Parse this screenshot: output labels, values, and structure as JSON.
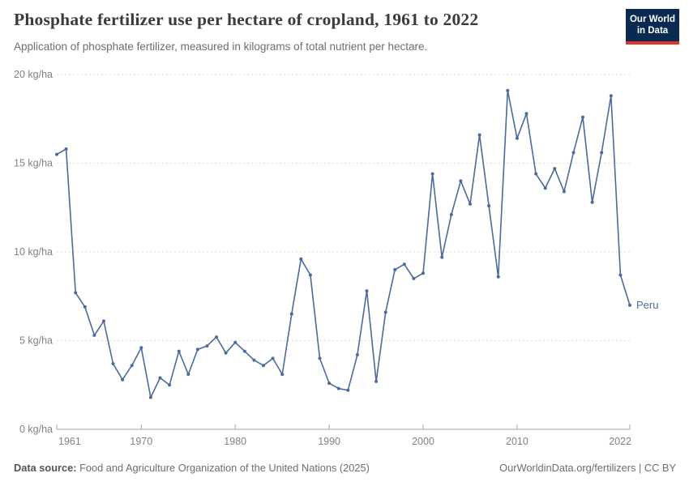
{
  "header": {
    "title": "Phosphate fertilizer use per hectare of cropland, 1961 to 2022",
    "subtitle": "Application of phosphate fertilizer, measured in kilograms of total nutrient per hectare.",
    "logo_line1": "Our World",
    "logo_line2": "in Data"
  },
  "footer": {
    "source_label": "Data source:",
    "source_text": " Food and Agriculture Organization of the United Nations (2025)",
    "rights_text": "OurWorldinData.org/fertilizers | CC BY"
  },
  "colors": {
    "series": "#4C6A9C",
    "grid": "#dcdcdc",
    "axis": "#a3a3a3",
    "logo_bg": "#0a2a52",
    "logo_red": "#e0362c"
  },
  "chart_data": {
    "type": "line",
    "title": "Phosphate fertilizer use per hectare of cropland, 1961 to 2022",
    "xlabel": "",
    "ylabel": "kg/ha",
    "xlim": [
      1961,
      2022
    ],
    "ylim": [
      0,
      20
    ],
    "x_ticks": [
      1961,
      1970,
      1980,
      1990,
      2000,
      2010,
      2022
    ],
    "y_ticks": [
      0,
      5,
      10,
      15,
      20
    ],
    "y_tick_suffix": " kg/ha",
    "grid": "horizontal-dashed",
    "legend_position": "end-of-line",
    "series": [
      {
        "name": "Peru",
        "color": "#4C6A9C",
        "years": [
          1961,
          1962,
          1963,
          1964,
          1965,
          1966,
          1967,
          1968,
          1969,
          1970,
          1971,
          1972,
          1973,
          1974,
          1975,
          1976,
          1977,
          1978,
          1979,
          1980,
          1981,
          1982,
          1983,
          1984,
          1985,
          1986,
          1987,
          1988,
          1989,
          1990,
          1991,
          1992,
          1993,
          1994,
          1995,
          1996,
          1997,
          1998,
          1999,
          2000,
          2001,
          2002,
          2003,
          2004,
          2005,
          2006,
          2007,
          2008,
          2009,
          2010,
          2011,
          2012,
          2013,
          2014,
          2015,
          2016,
          2017,
          2018,
          2019,
          2020,
          2021,
          2022
        ],
        "values": [
          15.5,
          15.8,
          7.7,
          6.9,
          5.3,
          6.1,
          3.7,
          2.8,
          3.6,
          4.6,
          1.8,
          2.9,
          2.5,
          4.4,
          3.1,
          4.5,
          4.7,
          5.2,
          4.3,
          4.9,
          4.4,
          3.9,
          3.6,
          4.0,
          3.1,
          6.5,
          9.6,
          8.7,
          4.0,
          2.6,
          2.3,
          2.2,
          4.2,
          7.8,
          2.7,
          6.6,
          9.0,
          9.3,
          8.5,
          8.8,
          14.4,
          9.7,
          12.1,
          14.0,
          12.7,
          16.6,
          12.6,
          8.6,
          19.1,
          16.4,
          17.8,
          14.4,
          13.6,
          14.7,
          13.4,
          15.6,
          17.6,
          12.8,
          15.6,
          18.8,
          8.7,
          7.0
        ]
      }
    ]
  }
}
